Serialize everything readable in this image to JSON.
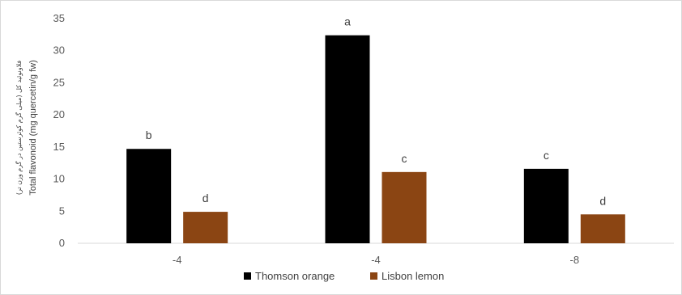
{
  "chart_data": {
    "type": "bar",
    "title": "",
    "categories": [
      "-4",
      "-4",
      "-8"
    ],
    "series": [
      {
        "name": "Thomson orange",
        "values": [
          14.7,
          32.4,
          11.6
        ],
        "letters": [
          "b",
          "a",
          "c"
        ],
        "color": "#000000"
      },
      {
        "name": "Lisbon lemon",
        "values": [
          4.9,
          11.1,
          4.5
        ],
        "letters": [
          "d",
          "c",
          "d"
        ],
        "color": "#8B4513"
      }
    ],
    "ylabel": "Total flavonoid (mg quercetin/g fw)",
    "ylabel_secondary": "فلاونوئید کل (میلی گرم کوئرستین در گرم وزن تر)",
    "xlabel": "",
    "ylim": [
      0,
      35
    ],
    "yticks": [
      0,
      5,
      10,
      15,
      20,
      25,
      30,
      35
    ],
    "grid": false,
    "legend_position": "bottom"
  }
}
